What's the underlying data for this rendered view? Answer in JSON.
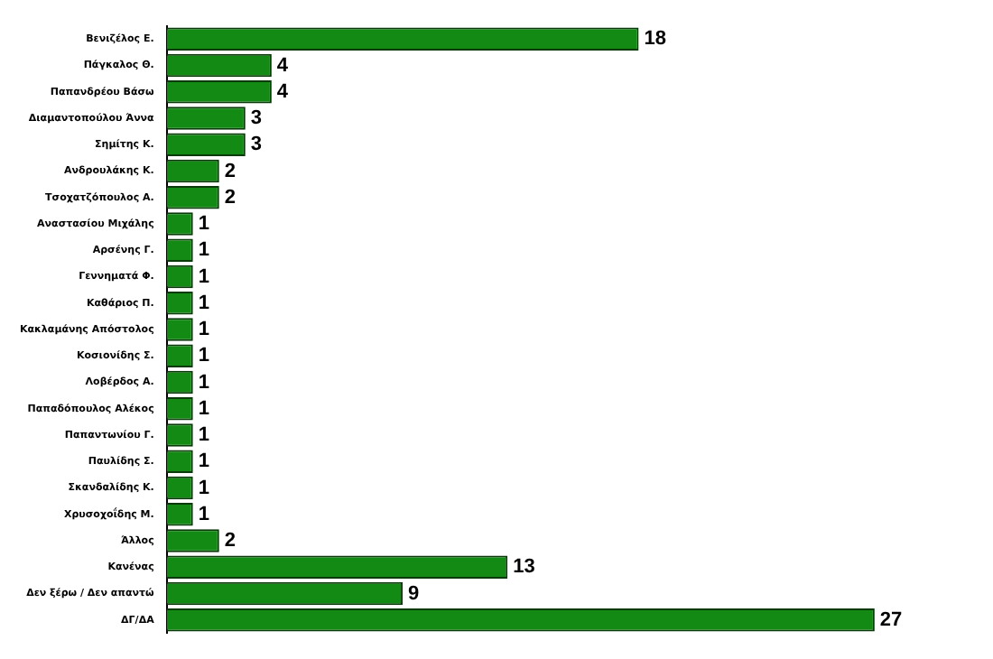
{
  "chart_data": {
    "type": "bar",
    "orientation": "horizontal",
    "data_labels": true,
    "color": "#138a13",
    "categories": [
      "Βενιζέλος Ε.",
      "Πάγκαλος Θ.",
      "Παπανδρέου Βάσω",
      "Διαμαντοπούλου Άννα",
      "Σημίτης Κ.",
      "Ανδρουλάκης Κ.",
      "Τσοχατζόπουλος Α.",
      "Αναστασίου Μιχάλης",
      "Αρσένης Γ.",
      "Γεννηματά Φ.",
      "Καθάριος Π.",
      "Κακλαμάνης Απόστολος",
      "Κοσιονίδης Σ.",
      "Λοβέρδος Α.",
      "Παπαδόπουλος Αλέκος",
      "Παπαντωνίου Γ.",
      "Παυλίδης Σ.",
      "Σκανδαλίδης Κ.",
      "Χρυσοχοΐδης Μ.",
      "Άλλος",
      "Κανένας",
      "Δεν ξέρω / Δεν απαντώ",
      "ΔΓ/ΔΑ"
    ],
    "values": [
      18,
      4,
      4,
      3,
      3,
      2,
      2,
      1,
      1,
      1,
      1,
      1,
      1,
      1,
      1,
      1,
      1,
      1,
      1,
      2,
      13,
      9,
      27
    ]
  }
}
